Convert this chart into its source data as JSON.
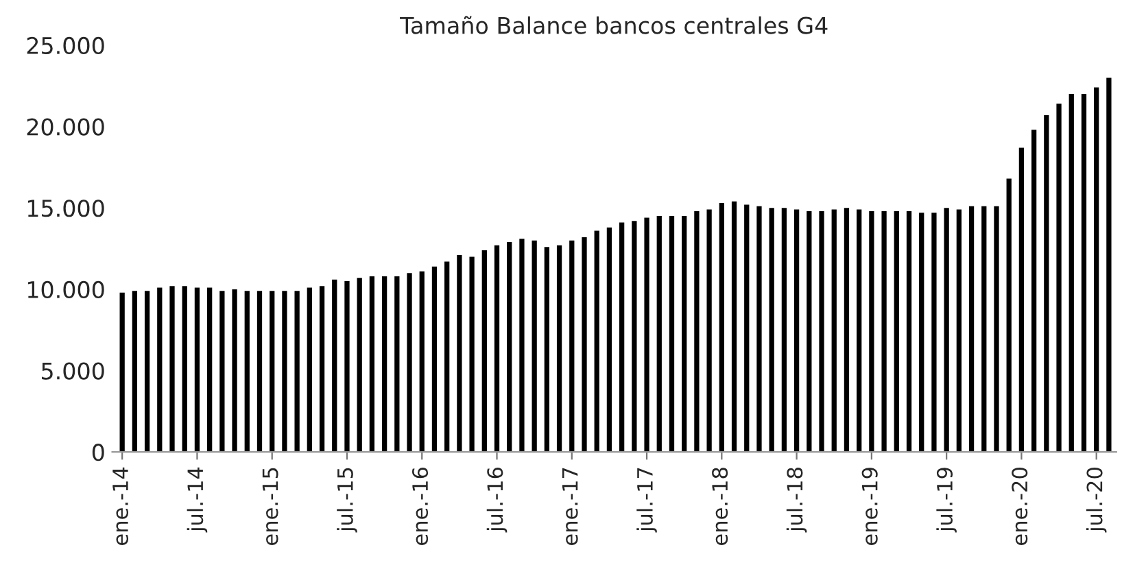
{
  "chart_data": {
    "type": "bar",
    "title": "Tamaño Balance bancos centrales G4",
    "categories": [
      "ene.-14",
      null,
      null,
      null,
      null,
      null,
      "jul.-14",
      null,
      null,
      null,
      null,
      null,
      "ene.-15",
      null,
      null,
      null,
      null,
      null,
      "jul.-15",
      null,
      null,
      null,
      null,
      null,
      "ene.-16",
      null,
      null,
      null,
      null,
      null,
      "jul.-16",
      null,
      null,
      null,
      null,
      null,
      "ene.-17",
      null,
      null,
      null,
      null,
      null,
      "jul.-17",
      null,
      null,
      null,
      null,
      null,
      "ene.-18",
      null,
      null,
      null,
      null,
      null,
      "jul.-18",
      null,
      null,
      null,
      null,
      null,
      "ene.-19",
      null,
      null,
      null,
      null,
      null,
      "jul.-19",
      null,
      null,
      null,
      null,
      null,
      "ene.-20",
      null,
      null,
      null,
      null,
      null,
      "jul.-20",
      null
    ],
    "values": [
      9800,
      9900,
      9900,
      10100,
      10200,
      10200,
      10100,
      10100,
      9900,
      10000,
      9900,
      9900,
      9900,
      9900,
      9900,
      10100,
      10200,
      10600,
      10500,
      10700,
      10800,
      10800,
      10800,
      11000,
      11100,
      11400,
      11700,
      12100,
      12000,
      12400,
      12700,
      12900,
      13100,
      13000,
      12600,
      12700,
      13000,
      13200,
      13600,
      13800,
      14100,
      14200,
      14400,
      14500,
      14500,
      14500,
      14800,
      14900,
      15300,
      15400,
      15200,
      15100,
      15000,
      15000,
      14900,
      14800,
      14800,
      14900,
      15000,
      14900,
      14800,
      14800,
      14800,
      14800,
      14700,
      14700,
      15000,
      14900,
      15100,
      15100,
      15100,
      16800,
      18700,
      19800,
      20700,
      21400,
      22000,
      22000,
      22400,
      23000
    ],
    "color": "#000000",
    "ylim": [
      0,
      25000
    ],
    "yticks": [
      0,
      {
        "value": 5000,
        "label": "5.000"
      },
      {
        "value": 10000,
        "label": "10.000"
      },
      {
        "value": 15000,
        "label": "15.000"
      },
      {
        "value": 20000,
        "label": "20.000"
      },
      {
        "value": 25000,
        "label": "25.000"
      }
    ],
    "grid": false,
    "legend": false
  }
}
